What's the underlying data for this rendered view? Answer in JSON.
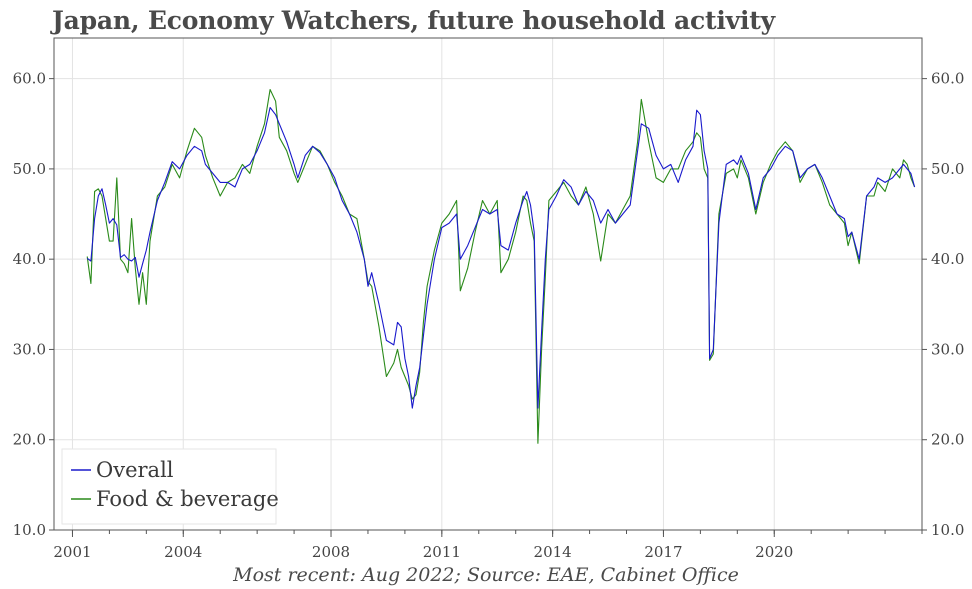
{
  "title": "Japan, Economy Watchers, future household activity",
  "footer": "Most recent: Aug 2022; Source: EAE, Cabinet Office",
  "chart_data": {
    "type": "line",
    "title": "Japan, Economy Watchers, future household activity",
    "xlabel": "",
    "ylabel": "",
    "xlim": [
      2000.5,
      2024.0
    ],
    "ylim": [
      10.0,
      64.5
    ],
    "x_ticks": [
      2001,
      2004,
      2008,
      2011,
      2014,
      2017,
      2020
    ],
    "y_ticks": [
      10.0,
      20.0,
      30.0,
      40.0,
      50.0,
      60.0
    ],
    "y_axis_both_sides": true,
    "grid": true,
    "legend_position": "bottom-left",
    "colors": {
      "Overall": "#1a1acc",
      "Food & beverage": "#2a8a1a"
    },
    "series": [
      {
        "name": "Overall",
        "points": [
          [
            2001.4,
            40.1
          ],
          [
            2001.5,
            39.8
          ],
          [
            2001.6,
            44.5
          ],
          [
            2001.7,
            47.0
          ],
          [
            2001.8,
            47.8
          ],
          [
            2001.9,
            46.0
          ],
          [
            2002.0,
            44.0
          ],
          [
            2002.1,
            44.5
          ],
          [
            2002.2,
            43.8
          ],
          [
            2002.3,
            40.2
          ],
          [
            2002.4,
            40.5
          ],
          [
            2002.5,
            40.0
          ],
          [
            2002.6,
            39.8
          ],
          [
            2002.7,
            40.2
          ],
          [
            2002.8,
            38.0
          ],
          [
            2002.9,
            39.5
          ],
          [
            2003.0,
            41.0
          ],
          [
            2003.1,
            43.0
          ],
          [
            2003.3,
            46.5
          ],
          [
            2003.5,
            48.5
          ],
          [
            2003.7,
            50.8
          ],
          [
            2003.9,
            50.0
          ],
          [
            2004.1,
            51.5
          ],
          [
            2004.3,
            52.5
          ],
          [
            2004.5,
            52.0
          ],
          [
            2004.6,
            50.5
          ],
          [
            2004.8,
            49.5
          ],
          [
            2005.0,
            48.5
          ],
          [
            2005.2,
            48.5
          ],
          [
            2005.4,
            48.0
          ],
          [
            2005.6,
            50.0
          ],
          [
            2005.8,
            50.5
          ],
          [
            2006.0,
            52.0
          ],
          [
            2006.2,
            54.0
          ],
          [
            2006.35,
            56.8
          ],
          [
            2006.5,
            56.0
          ],
          [
            2006.6,
            55.0
          ],
          [
            2006.8,
            53.0
          ],
          [
            2007.0,
            50.5
          ],
          [
            2007.1,
            49.0
          ],
          [
            2007.3,
            51.5
          ],
          [
            2007.5,
            52.5
          ],
          [
            2007.7,
            51.8
          ],
          [
            2007.9,
            50.5
          ],
          [
            2008.1,
            49.0
          ],
          [
            2008.3,
            46.5
          ],
          [
            2008.5,
            45.0
          ],
          [
            2008.7,
            43.0
          ],
          [
            2008.9,
            40.0
          ],
          [
            2009.0,
            37.0
          ],
          [
            2009.1,
            38.5
          ],
          [
            2009.3,
            35.0
          ],
          [
            2009.5,
            31.0
          ],
          [
            2009.7,
            30.5
          ],
          [
            2009.8,
            33.0
          ],
          [
            2009.9,
            32.5
          ],
          [
            2010.0,
            29.0
          ],
          [
            2010.1,
            27.0
          ],
          [
            2010.2,
            23.5
          ],
          [
            2010.3,
            26.0
          ],
          [
            2010.4,
            28.0
          ],
          [
            2010.5,
            31.5
          ],
          [
            2010.6,
            35.0
          ],
          [
            2010.8,
            40.0
          ],
          [
            2011.0,
            43.5
          ],
          [
            2011.2,
            44.0
          ],
          [
            2011.4,
            45.0
          ],
          [
            2011.5,
            40.0
          ],
          [
            2011.7,
            41.5
          ],
          [
            2011.9,
            43.5
          ],
          [
            2012.1,
            45.5
          ],
          [
            2012.3,
            45.0
          ],
          [
            2012.5,
            45.5
          ],
          [
            2012.6,
            41.5
          ],
          [
            2012.8,
            41.0
          ],
          [
            2013.0,
            44.0
          ],
          [
            2013.2,
            46.5
          ],
          [
            2013.3,
            47.5
          ],
          [
            2013.4,
            46.0
          ],
          [
            2013.5,
            43.0
          ],
          [
            2013.6,
            23.5
          ],
          [
            2013.7,
            32.0
          ],
          [
            2013.8,
            40.0
          ],
          [
            2013.9,
            45.5
          ],
          [
            2014.1,
            47.0
          ],
          [
            2014.3,
            48.8
          ],
          [
            2014.5,
            48.0
          ],
          [
            2014.7,
            46.0
          ],
          [
            2014.9,
            47.5
          ],
          [
            2015.1,
            46.5
          ],
          [
            2015.3,
            44.0
          ],
          [
            2015.5,
            45.5
          ],
          [
            2015.7,
            44.0
          ],
          [
            2015.9,
            45.0
          ],
          [
            2016.1,
            46.0
          ],
          [
            2016.3,
            52.0
          ],
          [
            2016.4,
            55.0
          ],
          [
            2016.6,
            54.5
          ],
          [
            2016.8,
            51.5
          ],
          [
            2017.0,
            50.0
          ],
          [
            2017.2,
            50.5
          ],
          [
            2017.4,
            48.5
          ],
          [
            2017.6,
            51.0
          ],
          [
            2017.8,
            52.5
          ],
          [
            2017.9,
            56.5
          ],
          [
            2018.0,
            56.0
          ],
          [
            2018.1,
            52.0
          ],
          [
            2018.2,
            50.0
          ],
          [
            2018.25,
            29.0
          ],
          [
            2018.35,
            30.0
          ],
          [
            2018.5,
            44.0
          ],
          [
            2018.7,
            50.5
          ],
          [
            2018.9,
            51.0
          ],
          [
            2019.0,
            50.5
          ],
          [
            2019.1,
            51.5
          ],
          [
            2019.3,
            49.5
          ],
          [
            2019.5,
            45.5
          ],
          [
            2019.7,
            49.0
          ],
          [
            2019.9,
            50.0
          ],
          [
            2020.1,
            51.5
          ],
          [
            2020.3,
            52.5
          ],
          [
            2020.5,
            52.0
          ],
          [
            2020.7,
            49.0
          ],
          [
            2020.9,
            50.0
          ],
          [
            2021.1,
            50.5
          ],
          [
            2021.3,
            49.0
          ],
          [
            2021.5,
            47.0
          ],
          [
            2021.7,
            45.0
          ],
          [
            2021.9,
            44.5
          ],
          [
            2022.0,
            42.5
          ],
          [
            2022.1,
            43.0
          ],
          [
            2022.3,
            40.0
          ],
          [
            2022.5,
            47.0
          ],
          [
            2022.7,
            48.0
          ],
          [
            2022.8,
            49.0
          ],
          [
            2023.0,
            48.5
          ],
          [
            2023.2,
            49.0
          ],
          [
            2023.4,
            50.0
          ],
          [
            2023.5,
            50.5
          ],
          [
            2023.6,
            50.0
          ],
          [
            2023.7,
            49.5
          ],
          [
            2023.8,
            48.0
          ]
        ]
      },
      {
        "name": "Food & beverage",
        "points": [
          [
            2001.4,
            40.3
          ],
          [
            2001.5,
            37.3
          ],
          [
            2001.6,
            47.5
          ],
          [
            2001.7,
            47.8
          ],
          [
            2001.8,
            47.0
          ],
          [
            2001.9,
            44.5
          ],
          [
            2002.0,
            42.0
          ],
          [
            2002.1,
            42.0
          ],
          [
            2002.2,
            49.0
          ],
          [
            2002.3,
            40.0
          ],
          [
            2002.4,
            39.5
          ],
          [
            2002.5,
            38.5
          ],
          [
            2002.6,
            44.5
          ],
          [
            2002.7,
            39.0
          ],
          [
            2002.8,
            35.0
          ],
          [
            2002.9,
            38.5
          ],
          [
            2003.0,
            35.0
          ],
          [
            2003.1,
            42.0
          ],
          [
            2003.3,
            47.0
          ],
          [
            2003.5,
            48.0
          ],
          [
            2003.7,
            50.5
          ],
          [
            2003.9,
            49.0
          ],
          [
            2004.1,
            52.0
          ],
          [
            2004.3,
            54.5
          ],
          [
            2004.5,
            53.5
          ],
          [
            2004.6,
            51.5
          ],
          [
            2004.8,
            49.0
          ],
          [
            2005.0,
            47.0
          ],
          [
            2005.2,
            48.5
          ],
          [
            2005.4,
            49.0
          ],
          [
            2005.6,
            50.5
          ],
          [
            2005.8,
            49.5
          ],
          [
            2006.0,
            52.5
          ],
          [
            2006.2,
            55.0
          ],
          [
            2006.35,
            58.8
          ],
          [
            2006.5,
            57.5
          ],
          [
            2006.6,
            53.5
          ],
          [
            2006.8,
            52.0
          ],
          [
            2007.0,
            49.5
          ],
          [
            2007.1,
            48.5
          ],
          [
            2007.3,
            50.5
          ],
          [
            2007.5,
            52.5
          ],
          [
            2007.7,
            52.0
          ],
          [
            2007.9,
            50.5
          ],
          [
            2008.1,
            48.5
          ],
          [
            2008.3,
            47.0
          ],
          [
            2008.5,
            45.0
          ],
          [
            2008.7,
            44.5
          ],
          [
            2008.9,
            40.0
          ],
          [
            2009.0,
            37.5
          ],
          [
            2009.1,
            37.0
          ],
          [
            2009.3,
            32.5
          ],
          [
            2009.5,
            27.0
          ],
          [
            2009.7,
            28.5
          ],
          [
            2009.8,
            30.0
          ],
          [
            2009.9,
            28.0
          ],
          [
            2010.0,
            27.0
          ],
          [
            2010.1,
            26.0
          ],
          [
            2010.2,
            24.5
          ],
          [
            2010.3,
            25.0
          ],
          [
            2010.4,
            27.5
          ],
          [
            2010.5,
            33.0
          ],
          [
            2010.6,
            37.0
          ],
          [
            2010.8,
            41.0
          ],
          [
            2011.0,
            44.0
          ],
          [
            2011.2,
            45.0
          ],
          [
            2011.4,
            46.5
          ],
          [
            2011.5,
            36.5
          ],
          [
            2011.7,
            39.0
          ],
          [
            2011.9,
            43.0
          ],
          [
            2012.1,
            46.5
          ],
          [
            2012.3,
            45.0
          ],
          [
            2012.5,
            46.5
          ],
          [
            2012.6,
            38.5
          ],
          [
            2012.8,
            40.0
          ],
          [
            2013.0,
            43.0
          ],
          [
            2013.2,
            47.0
          ],
          [
            2013.3,
            46.5
          ],
          [
            2013.4,
            44.0
          ],
          [
            2013.5,
            42.0
          ],
          [
            2013.6,
            19.6
          ],
          [
            2013.7,
            30.0
          ],
          [
            2013.8,
            38.0
          ],
          [
            2013.9,
            46.5
          ],
          [
            2014.1,
            47.5
          ],
          [
            2014.3,
            48.5
          ],
          [
            2014.5,
            47.0
          ],
          [
            2014.7,
            46.0
          ],
          [
            2014.9,
            48.0
          ],
          [
            2015.1,
            45.0
          ],
          [
            2015.3,
            39.8
          ],
          [
            2015.5,
            45.0
          ],
          [
            2015.7,
            44.0
          ],
          [
            2015.9,
            45.5
          ],
          [
            2016.1,
            47.0
          ],
          [
            2016.3,
            53.0
          ],
          [
            2016.4,
            57.7
          ],
          [
            2016.6,
            53.0
          ],
          [
            2016.8,
            49.0
          ],
          [
            2017.0,
            48.5
          ],
          [
            2017.2,
            50.0
          ],
          [
            2017.4,
            50.0
          ],
          [
            2017.6,
            52.0
          ],
          [
            2017.8,
            53.0
          ],
          [
            2017.9,
            54.0
          ],
          [
            2018.0,
            53.5
          ],
          [
            2018.1,
            50.0
          ],
          [
            2018.2,
            49.0
          ],
          [
            2018.25,
            28.8
          ],
          [
            2018.35,
            29.5
          ],
          [
            2018.5,
            45.0
          ],
          [
            2018.7,
            49.5
          ],
          [
            2018.9,
            50.0
          ],
          [
            2019.0,
            49.0
          ],
          [
            2019.1,
            51.0
          ],
          [
            2019.3,
            49.0
          ],
          [
            2019.5,
            45.0
          ],
          [
            2019.7,
            48.5
          ],
          [
            2019.9,
            50.5
          ],
          [
            2020.1,
            52.0
          ],
          [
            2020.3,
            53.0
          ],
          [
            2020.5,
            52.0
          ],
          [
            2020.7,
            48.5
          ],
          [
            2020.9,
            50.0
          ],
          [
            2021.1,
            50.5
          ],
          [
            2021.3,
            48.5
          ],
          [
            2021.5,
            46.0
          ],
          [
            2021.7,
            45.0
          ],
          [
            2021.9,
            44.0
          ],
          [
            2022.0,
            41.5
          ],
          [
            2022.1,
            43.0
          ],
          [
            2022.3,
            39.5
          ],
          [
            2022.5,
            47.0
          ],
          [
            2022.7,
            47.0
          ],
          [
            2022.8,
            48.5
          ],
          [
            2023.0,
            47.5
          ],
          [
            2023.2,
            50.0
          ],
          [
            2023.4,
            49.0
          ],
          [
            2023.5,
            51.0
          ],
          [
            2023.6,
            50.5
          ],
          [
            2023.7,
            49.0
          ],
          [
            2023.8,
            48.0
          ]
        ]
      }
    ]
  }
}
